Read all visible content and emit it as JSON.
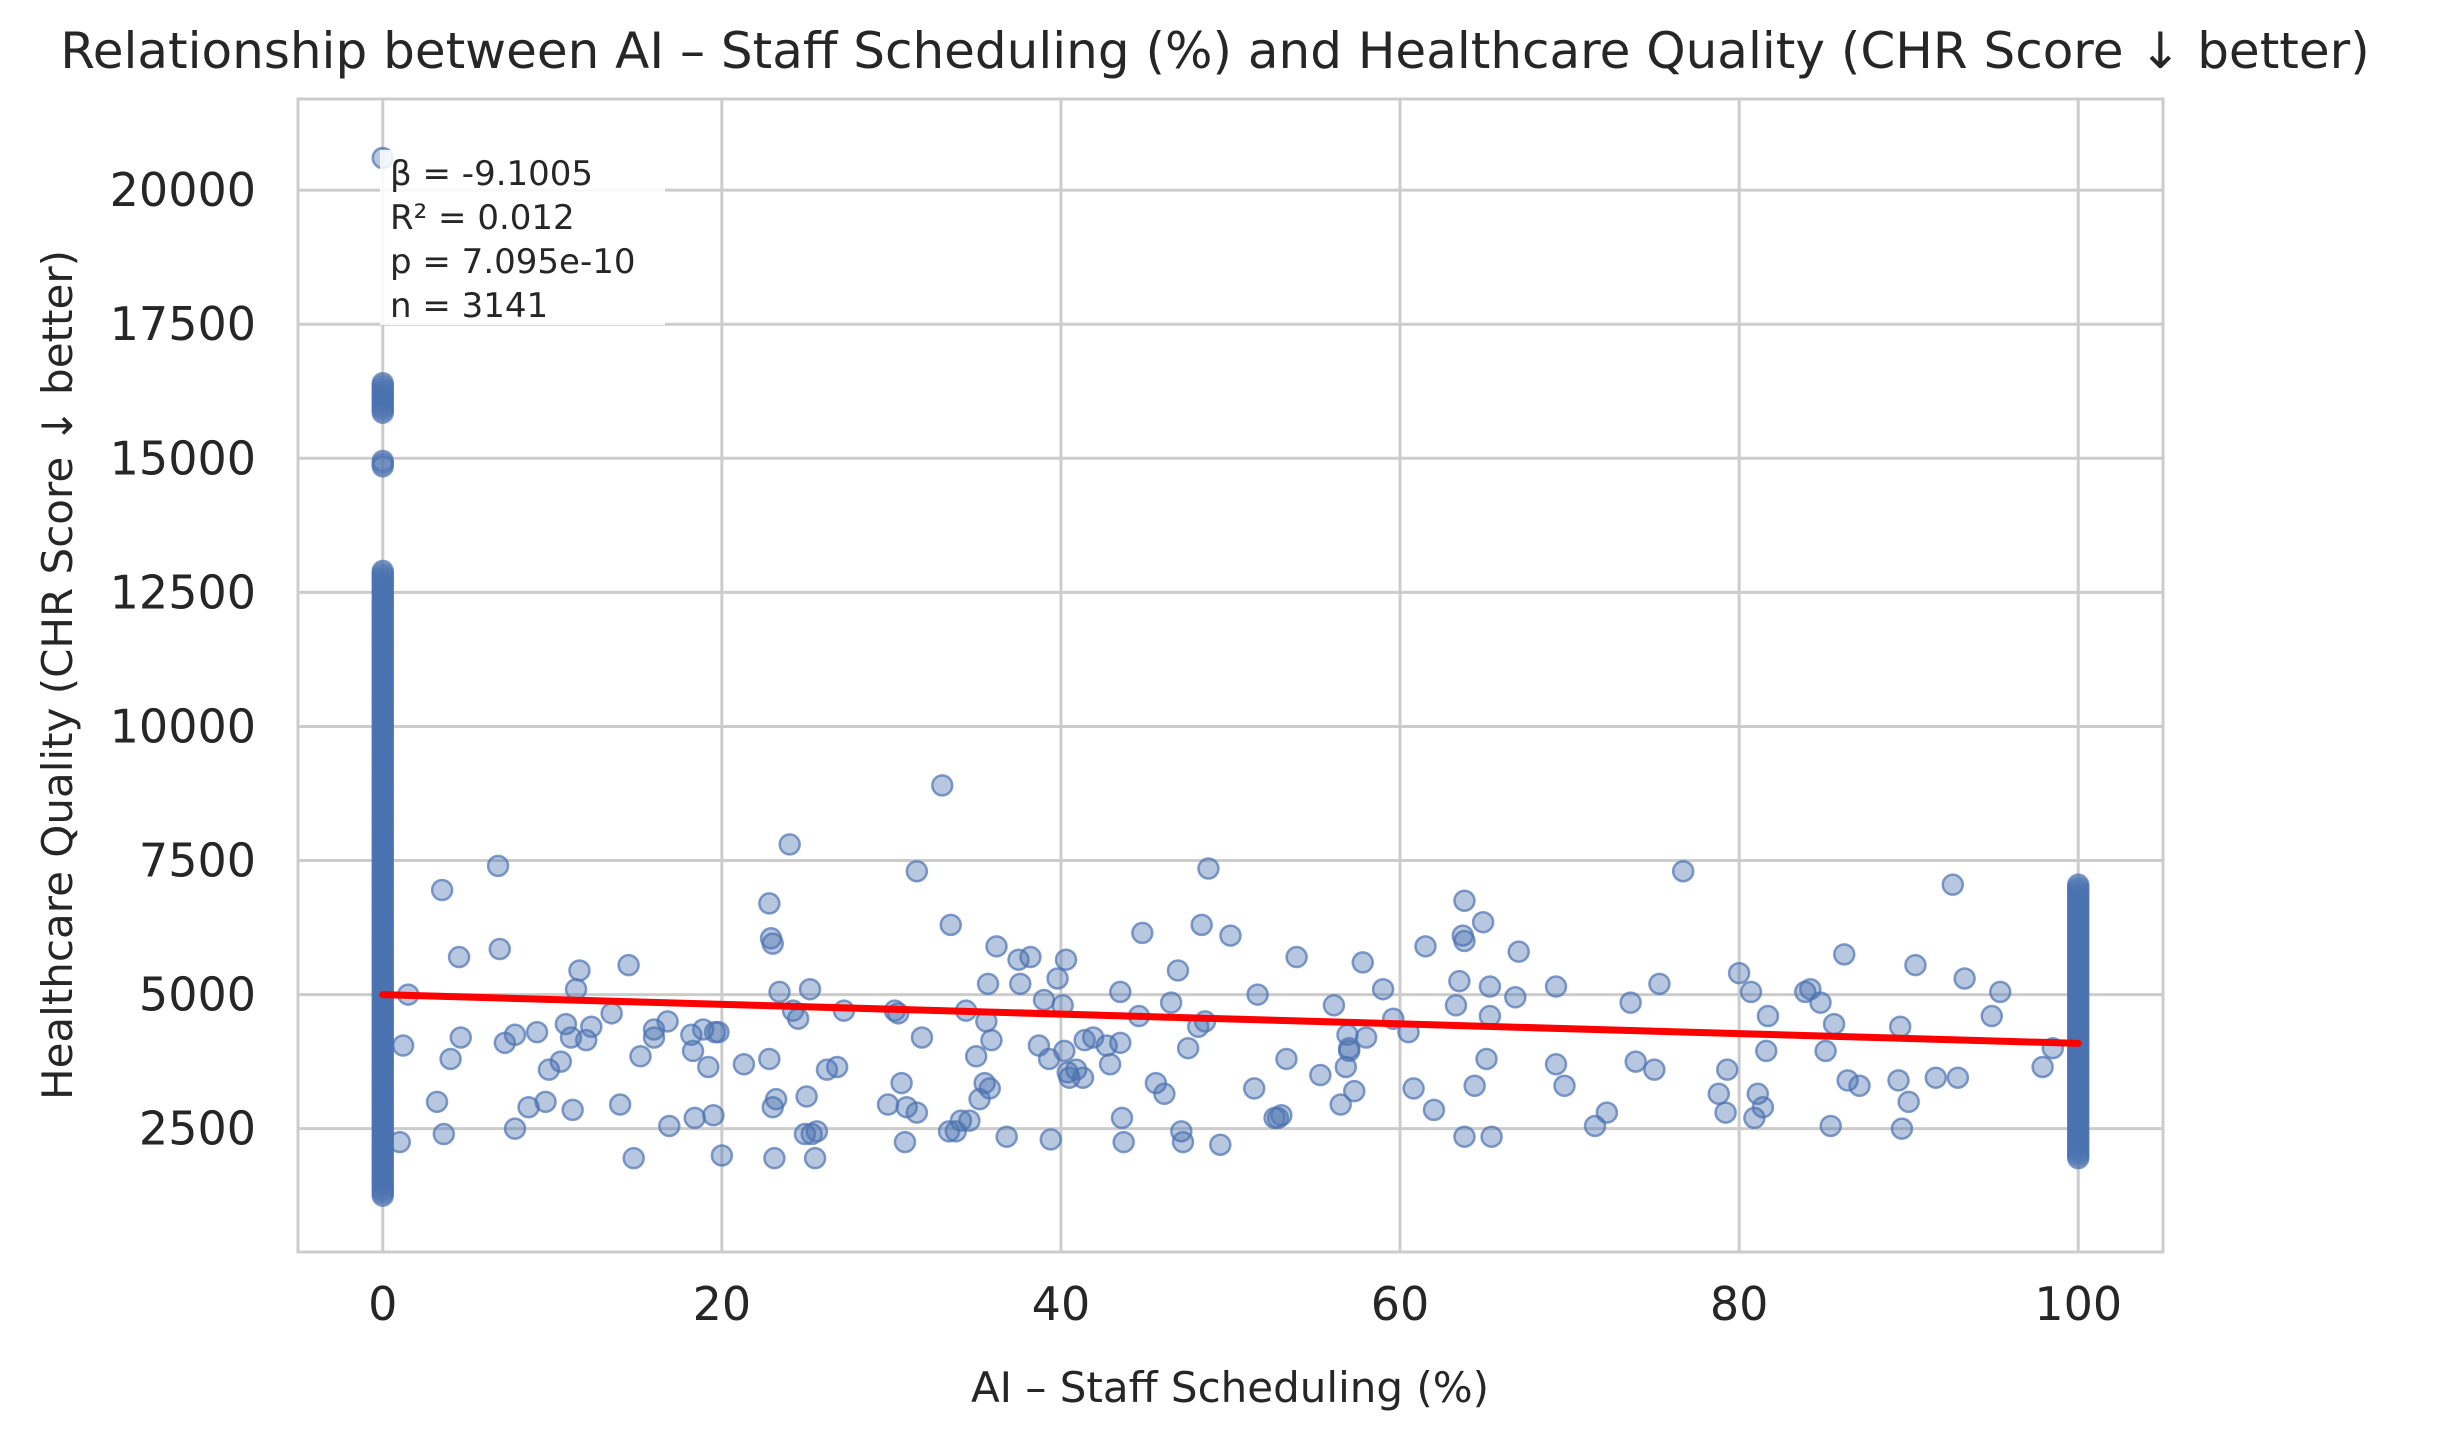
{
  "chart_data": {
    "type": "scatter",
    "title": "Relationship between AI – Staff Scheduling (%) and Healthcare Quality (CHR Score ↓ better)",
    "xlabel": "AI – Staff Scheduling (%)",
    "ylabel": "Healthcare Quality (CHR Score ↓ better)",
    "xlim": [
      -5,
      105
    ],
    "ylim": [
      200,
      21700
    ],
    "x_ticks": [
      0,
      20,
      40,
      60,
      80,
      100
    ],
    "y_ticks": [
      2500,
      5000,
      7500,
      10000,
      12500,
      15000,
      17500,
      20000
    ],
    "grid": true,
    "point_color": "#4c72b0",
    "line_color": "#ff0000",
    "regression": {
      "slope": -9.1005,
      "intercept": 5000,
      "x_range": [
        0,
        100
      ]
    },
    "stats": {
      "beta": "β = -9.1005",
      "r2": "R² = 0.012",
      "p": "p = 7.095e-10",
      "n": "n = 3141"
    },
    "points_x0": [
      20600,
      16400,
      16200,
      15850,
      14950,
      14850,
      12900,
      12500,
      12300,
      12100,
      11900,
      11700,
      11400,
      11200,
      11050,
      10900,
      10700,
      10500,
      10300,
      10100,
      9950,
      9800,
      9650,
      9500,
      9350,
      9200,
      9050,
      8900,
      8750,
      8600,
      8450,
      8300,
      8150,
      8000,
      7850,
      7700,
      7550,
      7400,
      7250,
      7100,
      6950,
      6800,
      6650,
      6500,
      6350,
      6200,
      6050,
      5900,
      5750,
      5600,
      5450,
      5300,
      5150,
      5000,
      4850,
      4700,
      4550,
      4400,
      4250,
      4100,
      3950,
      3800,
      3650,
      3500,
      3350,
      3200,
      3050,
      2900,
      2750,
      2600,
      2450,
      2300,
      2150,
      2000,
      1850,
      1700,
      1550,
      1400,
      1250
    ],
    "points_x100": [
      7050,
      6950,
      6850,
      6600,
      6350,
      6150,
      5950,
      5800,
      5650,
      5500,
      5350,
      5200,
      5050,
      4900,
      4750,
      4600,
      4450,
      4300,
      4150,
      4000,
      3850,
      3700,
      3550,
      3400,
      3250,
      3100,
      2950,
      2800,
      2600,
      2550,
      2100,
      2000,
      1950
    ],
    "points_mid": [
      [
        1.2,
        4050
      ],
      [
        1.5,
        5000
      ],
      [
        1.0,
        2250
      ],
      [
        3.5,
        6950
      ],
      [
        4.5,
        5700
      ],
      [
        4.0,
        3800
      ],
      [
        4.6,
        4200
      ],
      [
        3.2,
        3000
      ],
      [
        3.6,
        2400
      ],
      [
        6.8,
        7400
      ],
      [
        6.9,
        5850
      ],
      [
        7.2,
        4100
      ],
      [
        7.8,
        4250
      ],
      [
        7.8,
        2500
      ],
      [
        8.6,
        2900
      ],
      [
        9.1,
        4300
      ],
      [
        9.6,
        3000
      ],
      [
        9.8,
        3600
      ],
      [
        10.5,
        3750
      ],
      [
        10.8,
        4450
      ],
      [
        11.1,
        4200
      ],
      [
        11.2,
        2850
      ],
      [
        11.4,
        5100
      ],
      [
        11.6,
        5450
      ],
      [
        12.0,
        4150
      ],
      [
        12.3,
        4400
      ],
      [
        13.5,
        4650
      ],
      [
        14.0,
        2950
      ],
      [
        14.5,
        5550
      ],
      [
        14.8,
        1950
      ],
      [
        15.2,
        3850
      ],
      [
        16.0,
        4350
      ],
      [
        16.0,
        4200
      ],
      [
        16.8,
        4500
      ],
      [
        16.9,
        2550
      ],
      [
        18.2,
        4250
      ],
      [
        18.3,
        3950
      ],
      [
        18.4,
        2700
      ],
      [
        18.9,
        4350
      ],
      [
        19.2,
        3650
      ],
      [
        19.5,
        2750
      ],
      [
        19.6,
        4300
      ],
      [
        19.8,
        4300
      ],
      [
        20.0,
        2000
      ],
      [
        21.3,
        3700
      ],
      [
        22.8,
        6700
      ],
      [
        22.9,
        6050
      ],
      [
        23.0,
        5950
      ],
      [
        22.8,
        3800
      ],
      [
        23.0,
        2900
      ],
      [
        23.2,
        3050
      ],
      [
        23.1,
        1950
      ],
      [
        23.4,
        5050
      ],
      [
        24.0,
        7800
      ],
      [
        24.2,
        4700
      ],
      [
        24.5,
        4550
      ],
      [
        24.9,
        2400
      ],
      [
        25.0,
        3100
      ],
      [
        25.2,
        5100
      ],
      [
        25.3,
        2400
      ],
      [
        25.5,
        1950
      ],
      [
        25.6,
        2450
      ],
      [
        26.2,
        3600
      ],
      [
        26.8,
        3650
      ],
      [
        27.2,
        4700
      ],
      [
        29.8,
        2950
      ],
      [
        30.2,
        4700
      ],
      [
        30.4,
        4650
      ],
      [
        30.6,
        3350
      ],
      [
        30.8,
        2250
      ],
      [
        30.9,
        2900
      ],
      [
        31.5,
        2800
      ],
      [
        31.5,
        7300
      ],
      [
        31.8,
        4200
      ],
      [
        33.0,
        8900
      ],
      [
        33.4,
        2450
      ],
      [
        33.5,
        6300
      ],
      [
        33.8,
        2450
      ],
      [
        34.1,
        2650
      ],
      [
        34.4,
        4700
      ],
      [
        34.6,
        2650
      ],
      [
        35.0,
        3850
      ],
      [
        35.2,
        3050
      ],
      [
        35.5,
        3350
      ],
      [
        35.6,
        4500
      ],
      [
        35.7,
        5200
      ],
      [
        35.8,
        3250
      ],
      [
        35.9,
        4150
      ],
      [
        36.2,
        5900
      ],
      [
        36.8,
        2350
      ],
      [
        37.5,
        5650
      ],
      [
        37.6,
        5200
      ],
      [
        38.2,
        5700
      ],
      [
        38.7,
        4050
      ],
      [
        39.0,
        4900
      ],
      [
        39.3,
        3800
      ],
      [
        39.4,
        2300
      ],
      [
        39.8,
        5300
      ],
      [
        40.1,
        4800
      ],
      [
        40.2,
        3950
      ],
      [
        40.3,
        5650
      ],
      [
        40.4,
        3550
      ],
      [
        40.5,
        3450
      ],
      [
        40.9,
        3600
      ],
      [
        41.3,
        3450
      ],
      [
        41.4,
        4150
      ],
      [
        41.9,
        4200
      ],
      [
        42.7,
        4050
      ],
      [
        42.9,
        3700
      ],
      [
        43.5,
        5050
      ],
      [
        43.5,
        4100
      ],
      [
        43.6,
        2700
      ],
      [
        43.7,
        2250
      ],
      [
        44.6,
        4600
      ],
      [
        44.8,
        6150
      ],
      [
        45.6,
        3350
      ],
      [
        46.1,
        3150
      ],
      [
        46.5,
        4850
      ],
      [
        46.9,
        5450
      ],
      [
        47.1,
        2450
      ],
      [
        47.2,
        2250
      ],
      [
        47.5,
        4000
      ],
      [
        48.1,
        4400
      ],
      [
        48.3,
        6300
      ],
      [
        48.5,
        4500
      ],
      [
        48.7,
        7350
      ],
      [
        49.4,
        2200
      ],
      [
        50.0,
        6100
      ],
      [
        51.4,
        3250
      ],
      [
        51.6,
        5000
      ],
      [
        52.6,
        2700
      ],
      [
        52.8,
        2700
      ],
      [
        53.0,
        2750
      ],
      [
        53.3,
        3800
      ],
      [
        53.9,
        5700
      ],
      [
        55.3,
        3500
      ],
      [
        56.1,
        4800
      ],
      [
        56.5,
        2950
      ],
      [
        56.8,
        3650
      ],
      [
        56.9,
        4250
      ],
      [
        57.0,
        3950
      ],
      [
        57.0,
        4000
      ],
      [
        57.3,
        3200
      ],
      [
        57.8,
        5600
      ],
      [
        58.0,
        4200
      ],
      [
        59.0,
        5100
      ],
      [
        59.6,
        4550
      ],
      [
        60.5,
        4300
      ],
      [
        60.8,
        3250
      ],
      [
        61.5,
        5900
      ],
      [
        62.0,
        2850
      ],
      [
        63.3,
        4800
      ],
      [
        63.5,
        5250
      ],
      [
        63.7,
        6100
      ],
      [
        63.8,
        6000
      ],
      [
        63.8,
        6750
      ],
      [
        63.8,
        2350
      ],
      [
        64.4,
        3300
      ],
      [
        64.9,
        6350
      ],
      [
        65.1,
        3800
      ],
      [
        65.3,
        4600
      ],
      [
        65.3,
        5150
      ],
      [
        65.4,
        2350
      ],
      [
        66.8,
        4950
      ],
      [
        67.0,
        5800
      ],
      [
        69.2,
        5150
      ],
      [
        69.2,
        3700
      ],
      [
        69.7,
        3300
      ],
      [
        71.5,
        2550
      ],
      [
        72.2,
        2800
      ],
      [
        73.6,
        4850
      ],
      [
        73.9,
        3750
      ],
      [
        75.0,
        3600
      ],
      [
        75.3,
        5200
      ],
      [
        76.7,
        7300
      ],
      [
        78.8,
        3150
      ],
      [
        79.3,
        3600
      ],
      [
        79.2,
        2800
      ],
      [
        80.0,
        5400
      ],
      [
        80.7,
        5050
      ],
      [
        80.9,
        2700
      ],
      [
        81.1,
        3150
      ],
      [
        81.4,
        2900
      ],
      [
        81.6,
        3950
      ],
      [
        81.7,
        4600
      ],
      [
        83.9,
        5050
      ],
      [
        84.2,
        5100
      ],
      [
        84.8,
        4850
      ],
      [
        85.1,
        3950
      ],
      [
        85.4,
        2550
      ],
      [
        85.6,
        4450
      ],
      [
        86.2,
        5750
      ],
      [
        86.4,
        3400
      ],
      [
        87.1,
        3300
      ],
      [
        89.4,
        3400
      ],
      [
        89.5,
        4400
      ],
      [
        89.6,
        2500
      ],
      [
        90.0,
        3000
      ],
      [
        90.4,
        5550
      ],
      [
        91.6,
        3450
      ],
      [
        92.6,
        7050
      ],
      [
        92.9,
        3450
      ],
      [
        93.3,
        5300
      ],
      [
        94.9,
        4600
      ],
      [
        95.4,
        5050
      ],
      [
        97.9,
        3650
      ],
      [
        98.5,
        4000
      ]
    ]
  }
}
